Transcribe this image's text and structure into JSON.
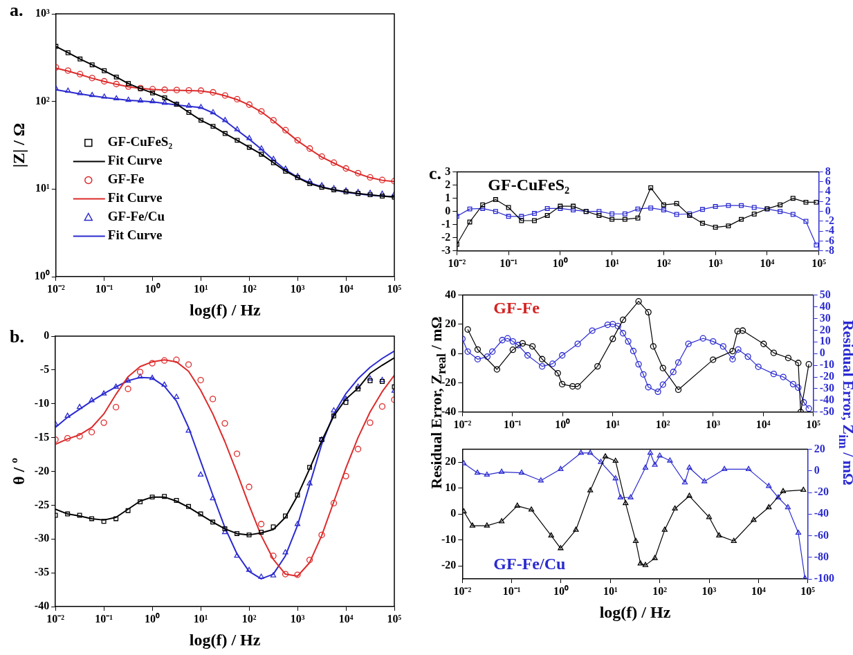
{
  "chart_data": [
    {
      "type": "scatter",
      "xlabel": "log(f) / Hz",
      "ylabel": "|Z| / Ω",
      "annotations": [
        "a."
      ],
      "log": "xy",
      "legend": "bottom left",
      "x": [
        0.01,
        0.0178,
        0.0316,
        0.0562,
        0.1,
        0.178,
        0.316,
        0.562,
        1,
        1.78,
        3.16,
        5.62,
        10,
        17.8,
        31.6,
        56.2,
        100,
        178,
        316,
        562,
        1000,
        1780,
        3160,
        5620,
        10000,
        17800,
        31600,
        56200,
        100000
      ],
      "xlim": [
        0.01,
        100000
      ],
      "xticks": [
        {
          "value": 0.01,
          "label": "10⁻²"
        },
        {
          "value": 0.1,
          "label": "10⁻¹"
        },
        {
          "value": 1,
          "label": "10⁰"
        },
        {
          "value": 10,
          "label": "10¹"
        },
        {
          "value": 100,
          "label": "10²"
        },
        {
          "value": 1000,
          "label": "10³"
        },
        {
          "value": 10000,
          "label": "10⁴"
        },
        {
          "value": 100000,
          "label": "10⁵"
        }
      ],
      "ylim": [
        1,
        1000
      ],
      "yticks": [
        {
          "value": 1,
          "label": "10⁰"
        },
        {
          "value": 10,
          "label": "10¹"
        },
        {
          "value": 100,
          "label": "10²"
        },
        {
          "value": 1000,
          "label": "10³"
        }
      ],
      "series": [
        {
          "name": "GF-CuFeS₂",
          "marker": "square",
          "color": "#000000",
          "values": [
            425,
            360,
            305,
            262,
            224,
            190,
            160,
            140,
            125,
            110,
            93,
            75,
            61,
            52,
            43,
            36,
            30,
            25,
            20,
            16,
            13.5,
            11.5,
            10.5,
            9.8,
            9.3,
            8.9,
            8.6,
            8.3,
            8.1
          ]
        },
        {
          "name": "Fit Curve",
          "type": "line",
          "marker": "none",
          "color": "#000000",
          "values": [
            425,
            360,
            305,
            262,
            224,
            190,
            160,
            140,
            125,
            110,
            93,
            75,
            61,
            52,
            43,
            36,
            30,
            25,
            20,
            16,
            13.5,
            11.5,
            10.5,
            9.8,
            9.3,
            8.9,
            8.6,
            8.3,
            8.1
          ]
        },
        {
          "name": "GF-Fe",
          "marker": "circle",
          "color": "#dd2a2a",
          "values": [
            245,
            225,
            205,
            185,
            170,
            158,
            148,
            142,
            138,
            136,
            135,
            134,
            133,
            127,
            117,
            106,
            92,
            77,
            61,
            47,
            36,
            29,
            23.5,
            20,
            17.2,
            15.2,
            13.6,
            12.7,
            12.3
          ]
        },
        {
          "name": "Fit Curve",
          "type": "line",
          "marker": "none",
          "color": "#dd2a2a",
          "values": [
            240,
            222,
            203,
            184,
            169,
            157,
            147,
            141,
            137,
            135,
            134,
            133,
            132,
            126,
            116,
            105,
            91,
            76,
            60,
            46,
            35.5,
            28.5,
            23.2,
            19.8,
            17,
            15,
            13.5,
            12.6,
            12.2
          ]
        },
        {
          "name": "GF-Fe/Cu",
          "marker": "triangle",
          "color": "#2a2ad0",
          "values": [
            140,
            132,
            124,
            118,
            113,
            108,
            104,
            102,
            100,
            96,
            92,
            89,
            86,
            75,
            61,
            48,
            38,
            29,
            22,
            17,
            14,
            12.2,
            11,
            10.2,
            9.6,
            9.2,
            9,
            8.8,
            8.7
          ]
        },
        {
          "name": "Fit Curve",
          "type": "line",
          "marker": "none",
          "color": "#2a2ad0",
          "values": [
            136,
            129,
            122,
            116,
            111,
            107,
            103,
            101,
            99,
            95,
            91,
            88,
            85,
            74,
            60,
            47,
            37,
            28.5,
            21.5,
            16.6,
            13.6,
            11.8,
            10.6,
            9.8,
            9.2,
            8.8,
            8.5,
            8.3,
            8.2
          ]
        }
      ]
    },
    {
      "type": "scatter",
      "xlabel": "log(f) / Hz",
      "ylabel": "θ / º",
      "annotations": [
        "b."
      ],
      "log": "x",
      "x": [
        0.01,
        0.0178,
        0.0316,
        0.0562,
        0.1,
        0.178,
        0.316,
        0.562,
        1,
        1.78,
        3.16,
        5.62,
        10,
        17.8,
        31.6,
        56.2,
        100,
        178,
        316,
        562,
        1000,
        1780,
        3160,
        5620,
        10000,
        17800,
        31600,
        56200,
        100000
      ],
      "xlim": [
        0.01,
        100000
      ],
      "xticks": [
        {
          "value": 0.01,
          "label": "10⁻²"
        },
        {
          "value": 0.1,
          "label": "10⁻¹"
        },
        {
          "value": 1,
          "label": "10⁰"
        },
        {
          "value": 10,
          "label": "10¹"
        },
        {
          "value": 100,
          "label": "10²"
        },
        {
          "value": 1000,
          "label": "10³"
        },
        {
          "value": 10000,
          "label": "10⁴"
        },
        {
          "value": 100000,
          "label": "10⁵"
        }
      ],
      "ylim": [
        -40,
        0
      ],
      "yticks": [
        -40,
        -35,
        -30,
        -25,
        -20,
        -15,
        -10,
        -5,
        0
      ],
      "series": [
        {
          "marker": "square",
          "color": "#000000",
          "values": [
            -26.5,
            -26.3,
            -26.5,
            -27,
            -27.4,
            -27,
            -25.8,
            -24.5,
            -23.8,
            -23.7,
            -24.3,
            -25.2,
            -26.3,
            -27.5,
            -28.5,
            -29.2,
            -29.4,
            -29,
            -28.2,
            -26.6,
            -23.5,
            -19.4,
            -15.3,
            -11.8,
            -9.8,
            -7.8,
            -6.6,
            -6.7,
            -7.5
          ]
        },
        {
          "type": "line",
          "marker": "none",
          "color": "#000000",
          "values": [
            -25.6,
            -26.3,
            -26.6,
            -27,
            -27.2,
            -26.8,
            -25.6,
            -24.4,
            -23.8,
            -23.8,
            -24.4,
            -25.3,
            -26.4,
            -27.5,
            -28.5,
            -29.2,
            -29.4,
            -29.1,
            -28.6,
            -26.8,
            -23.6,
            -19.6,
            -15.5,
            -11.8,
            -9.3,
            -7.7,
            -5.5,
            -4.3,
            -3.2
          ]
        },
        {
          "marker": "circle",
          "color": "#dd2a2a",
          "values": [
            -15.3,
            -15.1,
            -14.8,
            -14.2,
            -12.8,
            -10.5,
            -7.8,
            -5.3,
            -4,
            -3.6,
            -3.5,
            -4.2,
            -6.5,
            -9.3,
            -12.9,
            -17.4,
            -22.3,
            -27.8,
            -32.5,
            -35.2,
            -35.3,
            -33.1,
            -29.4,
            -24.7,
            -20.7,
            -16.7,
            -12.8,
            -10.4,
            -9.4
          ]
        },
        {
          "type": "line",
          "marker": "none",
          "color": "#dd2a2a",
          "values": [
            -16,
            -15.2,
            -14.6,
            -13.5,
            -11.5,
            -8.6,
            -6,
            -4.5,
            -3.8,
            -3.5,
            -3.8,
            -5.2,
            -8,
            -11.5,
            -15.6,
            -20.2,
            -25,
            -29.5,
            -33,
            -35.2,
            -35.5,
            -33.5,
            -29.5,
            -24.5,
            -19.5,
            -15,
            -11.2,
            -8.2,
            -5.8
          ]
        },
        {
          "marker": "triangle",
          "color": "#2a2ad0",
          "values": [
            -13,
            -11.8,
            -10.5,
            -9.5,
            -8.5,
            -7.5,
            -6.6,
            -6,
            -6.2,
            -7.2,
            -9,
            -14,
            -20.5,
            -24,
            -29,
            -32.5,
            -34.6,
            -35.6,
            -35.4,
            -32,
            -27.8,
            -21.8,
            -15.3,
            -11,
            -9.3,
            -7.5,
            -6.3,
            -6.5,
            -8.1
          ]
        },
        {
          "type": "line",
          "marker": "none",
          "color": "#2a2ad0",
          "values": [
            -13.5,
            -12,
            -10.8,
            -9.6,
            -8.5,
            -7.5,
            -6.6,
            -6.1,
            -6.2,
            -7.4,
            -9.6,
            -13.5,
            -18.5,
            -23.5,
            -28.3,
            -32.2,
            -34.8,
            -35.9,
            -35.2,
            -32.5,
            -28,
            -22,
            -16,
            -11.5,
            -8.5,
            -6.3,
            -4.6,
            -3.3,
            -2.2
          ]
        }
      ]
    },
    {
      "type": "line",
      "title": "GF-CuFeS₂",
      "annotations": [
        "c."
      ],
      "log": "x",
      "x": [
        0.01,
        0.0178,
        0.0316,
        0.0562,
        0.1,
        0.178,
        0.316,
        0.562,
        1,
        1.78,
        3.16,
        5.62,
        10,
        17.8,
        31.6,
        56.2,
        100,
        178,
        316,
        562,
        1000,
        1780,
        3160,
        5620,
        10000,
        17800,
        31600,
        56200,
        89100
      ],
      "xlim": [
        0.01,
        100000
      ],
      "xticks": [
        {
          "value": 0.01,
          "label": "10⁻²"
        },
        {
          "value": 0.1,
          "label": "10⁻¹"
        },
        {
          "value": 1,
          "label": "10⁰"
        },
        {
          "value": 10,
          "label": "10¹"
        },
        {
          "value": 100,
          "label": "10²"
        },
        {
          "value": 1000,
          "label": "10³"
        },
        {
          "value": 10000,
          "label": "10⁴"
        },
        {
          "value": 100000,
          "label": "10⁵"
        }
      ],
      "ylim": [
        -3,
        3
      ],
      "yticks": [
        -3,
        -2,
        -1,
        0,
        1,
        2,
        3
      ],
      "y2lim": [
        -8,
        8
      ],
      "y2ticks": [
        -8,
        -6,
        -4,
        -2,
        0,
        2,
        4,
        6,
        8
      ],
      "series": [
        {
          "marker": "square",
          "color": "#000000",
          "values": [
            -2.5,
            -0.8,
            0.5,
            0.9,
            0.3,
            -0.7,
            -0.7,
            -0.3,
            0.4,
            0.4,
            0,
            -0.3,
            -0.6,
            -0.6,
            -0.5,
            1.8,
            0.5,
            0.6,
            -0.3,
            -0.9,
            -1.2,
            -1.1,
            -0.6,
            -0.2,
            0.2,
            0.5,
            1,
            0.7,
            0.7
          ]
        },
        {
          "axis": "y2",
          "marker": "square",
          "color": "#2a2ad0",
          "values": [
            -1,
            0.5,
            0.6,
            0,
            -1,
            -1,
            -0.4,
            0.6,
            0.6,
            0.3,
            0,
            0,
            -0.5,
            -0.5,
            0.5,
            0.7,
            0.3,
            -0.6,
            -0.5,
            0.4,
            1,
            1.2,
            1.2,
            0.8,
            0.5,
            0,
            -0.6,
            -2,
            -6.8
          ]
        }
      ]
    },
    {
      "type": "line",
      "title": "GF-Fe",
      "ylabel": "Residual Error, Z$_{real}$ / mΩ",
      "y2label": "Residual Error, Z$_{im}$ / mΩ",
      "log": "x",
      "xlim": [
        0.01,
        100000
      ],
      "xticks": [
        {
          "value": 0.01,
          "label": "10⁻²"
        },
        {
          "value": 0.1,
          "label": "10⁻¹"
        },
        {
          "value": 1,
          "label": "10⁰"
        },
        {
          "value": 10,
          "label": "10¹"
        },
        {
          "value": 100,
          "label": "10²"
        },
        {
          "value": 1000,
          "label": "10³"
        },
        {
          "value": 10000,
          "label": "10⁴"
        },
        {
          "value": 100000,
          "label": "10⁵"
        }
      ],
      "ylim": [
        -40,
        40
      ],
      "yticks": [
        -40,
        -20,
        0,
        20,
        40
      ],
      "y2lim": [
        -50,
        50
      ],
      "y2ticks": [
        -50,
        -40,
        -30,
        -20,
        -10,
        0,
        10,
        20,
        30,
        40,
        50
      ],
      "series": [
        {
          "marker": "circle",
          "color": "#000000",
          "x": [
            0.0128,
            0.0202,
            0.049,
            0.1016,
            0.159,
            0.25,
            0.39,
            0.8,
            0.98,
            1.58,
            2,
            4.97,
            10,
            16,
            32.7,
            51.2,
            64.3,
            100,
            203,
            1000,
            2450,
            3090,
            3900,
            10200,
            16200,
            31600,
            50000,
            56000,
            81300
          ],
          "values": [
            16.5,
            2.8,
            -10.8,
            2.6,
            7,
            4.9,
            -3.8,
            -13.4,
            -20.9,
            -22.4,
            -22.4,
            -8.7,
            10.1,
            23.1,
            35.7,
            28.3,
            4.9,
            -9.9,
            -24.7,
            -4.2,
            1.7,
            15.3,
            15.7,
            6.6,
            0.5,
            -3,
            -6.4,
            -40,
            -7.3
          ]
        },
        {
          "axis": "y2",
          "marker": "circle",
          "color": "#2a2ad0",
          "x": [
            0.01,
            0.0128,
            0.0202,
            0.0315,
            0.0396,
            0.0625,
            0.0798,
            0.1016,
            0.13,
            0.2,
            0.39,
            0.63,
            0.98,
            2,
            3.9,
            7.9,
            10,
            12.7,
            16,
            20.3,
            25.7,
            32.7,
            40.7,
            51.2,
            79.6,
            100,
            161,
            203,
            323,
            631,
            1000,
            1590,
            2450,
            3170,
            4950,
            8000,
            16200,
            25100,
            39500,
            50000,
            64300,
            81300
          ],
          "values": [
            12.6,
            1.7,
            -4.8,
            -2.6,
            1.7,
            11.5,
            13,
            10.4,
            7.2,
            -1.5,
            -10.9,
            -8.7,
            -1.5,
            8.3,
            19.6,
            24.6,
            25.2,
            23.5,
            17.4,
            10.4,
            2.2,
            -9.1,
            -17.8,
            -28.7,
            -32.6,
            -26.5,
            -15.7,
            -7.6,
            8.3,
            13,
            10.4,
            6.1,
            -4.8,
            3.5,
            -2.6,
            -11.3,
            -17.4,
            -20,
            -26.1,
            -29.1,
            -41.7,
            -47
          ]
        }
      ]
    },
    {
      "type": "line",
      "title": "GF-Fe/Cu",
      "xlabel": "log(f) / Hz",
      "log": "x",
      "xlim": [
        0.01,
        100000
      ],
      "xticks": [
        {
          "value": 0.01,
          "label": "10⁻²"
        },
        {
          "value": 0.1,
          "label": "10⁻¹"
        },
        {
          "value": 1,
          "label": "10⁰"
        },
        {
          "value": 10,
          "label": "10¹"
        },
        {
          "value": 100,
          "label": "10²"
        },
        {
          "value": 1000,
          "label": "10³"
        },
        {
          "value": 10000,
          "label": "10⁴"
        },
        {
          "value": 100000,
          "label": "10⁵"
        }
      ],
      "ylim": [
        -25,
        25
      ],
      "yticks": [
        -20,
        -10,
        0,
        10,
        20
      ],
      "y2lim": [
        -100,
        20
      ],
      "y2ticks": [
        -100,
        -80,
        -60,
        -40,
        -20,
        0,
        20
      ],
      "series": [
        {
          "marker": "triangle",
          "color": "#000000",
          "x": [
            0.0107,
            0.016,
            0.0315,
            0.0625,
            0.13,
            0.25,
            0.63,
            0.98,
            2,
            3.9,
            7.9,
            12.7,
            20.3,
            32.7,
            40.7,
            51.2,
            79.6,
            126,
            203,
            398,
            1000,
            1590,
            3170,
            8000,
            16200,
            31600,
            81300
          ],
          "values": [
            1,
            -4.5,
            -4.5,
            -2.8,
            3.2,
            1.7,
            -8.3,
            -13.2,
            -6.1,
            9.1,
            22.2,
            20.5,
            4.2,
            -10.4,
            -19.1,
            -19.7,
            -17,
            -6.1,
            2.1,
            7,
            -1.2,
            -8.3,
            -10.4,
            -2.3,
            2.6,
            8.8,
            9.3
          ]
        },
        {
          "axis": "y2",
          "marker": "triangle",
          "color": "#2a2ad0",
          "x": [
            0.0107,
            0.0202,
            0.0315,
            0.0625,
            0.159,
            0.39,
            0.98,
            2.53,
            3.9,
            6.4,
            12.7,
            16,
            25.7,
            51.2,
            64.3,
            79.6,
            100,
            161,
            323,
            398,
            803,
            2040,
            6310,
            16200,
            25100,
            39500,
            64300,
            87500
          ],
          "values": [
            6.9,
            -1.8,
            -3.6,
            -1,
            -1.8,
            -8.9,
            1.6,
            16.6,
            16.6,
            8.2,
            -7,
            -24.6,
            -24.6,
            2.9,
            16.6,
            5.6,
            14,
            9.5,
            -10.7,
            2.9,
            -9.7,
            1.6,
            1.6,
            -14.1,
            -24.6,
            -33.8,
            -57.4,
            -99.4
          ]
        }
      ]
    }
  ]
}
